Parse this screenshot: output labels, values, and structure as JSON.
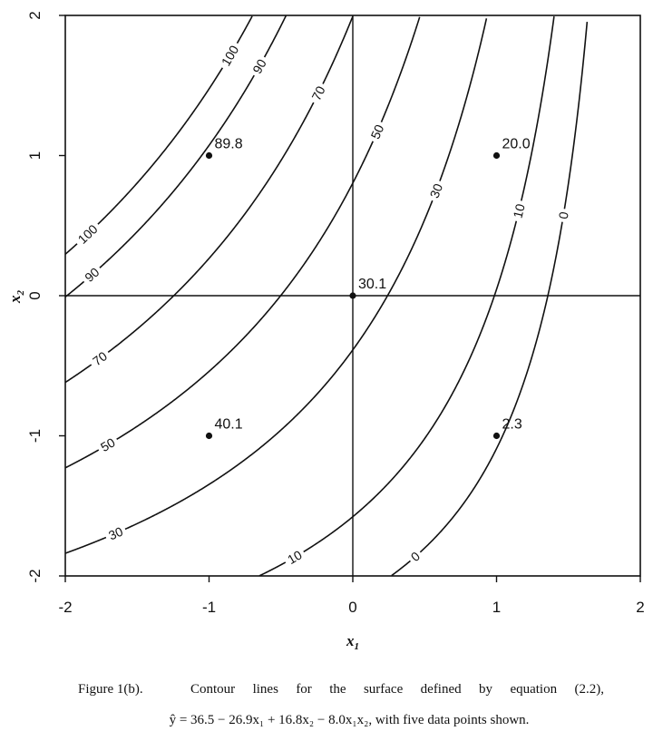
{
  "chart_data": {
    "type": "contour",
    "xlabel": "x",
    "xlabel_sub": "1",
    "ylabel": "x",
    "ylabel_sub": "2",
    "xlim": [
      -2,
      2
    ],
    "ylim": [
      -2,
      2
    ],
    "x_ticks": [
      "-2",
      "-1",
      "0",
      "1",
      "2"
    ],
    "y_ticks": [
      "-2",
      "-1",
      "0",
      "1",
      "2"
    ],
    "reference_lines": {
      "x": 0,
      "y": 0
    },
    "surface": {
      "intercept": 36.5,
      "b1": -26.9,
      "b2": 16.8,
      "b12": -8.0
    },
    "contours": [
      {
        "level": 100,
        "labels": [
          "100",
          "100"
        ]
      },
      {
        "level": 90,
        "labels": [
          "90",
          "90"
        ]
      },
      {
        "level": 70,
        "labels": [
          "70",
          "70"
        ]
      },
      {
        "level": 50,
        "labels": [
          "50",
          "50"
        ]
      },
      {
        "level": 30,
        "labels": [
          "30",
          "30"
        ]
      },
      {
        "level": 10,
        "labels": [
          "10",
          "10"
        ]
      },
      {
        "level": 0,
        "labels": [
          "0",
          "0"
        ]
      }
    ],
    "points": [
      {
        "x1": -1,
        "x2": 1,
        "label": "89.8"
      },
      {
        "x1": 1,
        "x2": 1,
        "label": "20.0"
      },
      {
        "x1": 0,
        "x2": 0,
        "label": "30.1"
      },
      {
        "x1": -1,
        "x2": -1,
        "label": "40.1"
      },
      {
        "x1": 1,
        "x2": -1,
        "label": "2.3"
      }
    ]
  },
  "caption": {
    "figure_label": "Figure 1(b).",
    "text": "Contour lines for the surface defined by equation (2.2),",
    "equation": "ŷ = 36.5 − 26.9x₁ + 16.8x₂ − 8.0x₁x₂, with five data points shown."
  }
}
